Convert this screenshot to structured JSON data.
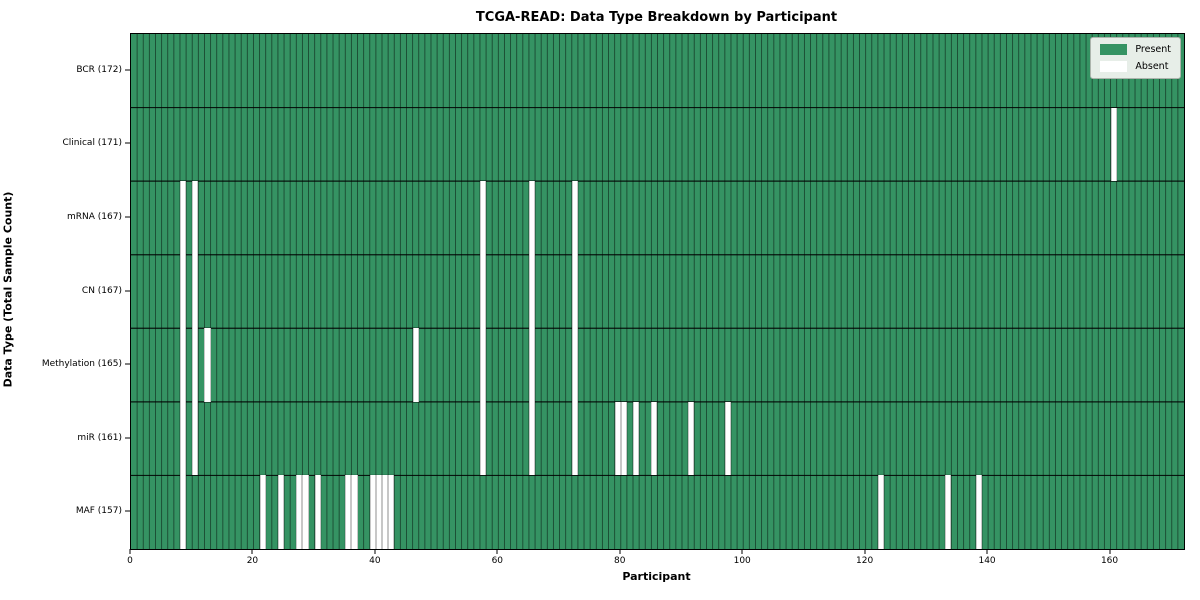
{
  "title": "TCGA-READ: Data Type Breakdown by Participant",
  "x_axis_label": "Participant",
  "y_axis_label": "Data Type (Total Sample Count)",
  "legend": {
    "present_label": "Present",
    "absent_label": "Absent"
  },
  "colors": {
    "present": "#359363",
    "absent": "#ffffff",
    "cell_edge": "rgba(0,0,0,0.5)",
    "row_divider": "rgba(0,0,0,0.85)"
  },
  "chart_data": {
    "type": "heatmap",
    "title": "TCGA-READ: Data Type Breakdown by Participant",
    "xlabel": "Participant",
    "ylabel": "Data Type (Total Sample Count)",
    "legend_entries": [
      "Present",
      "Absent"
    ],
    "legend_position": "upper right",
    "n_participants": 172,
    "xlim": [
      0,
      172
    ],
    "x_ticks": [
      0,
      20,
      40,
      60,
      80,
      100,
      120,
      140,
      160
    ],
    "rows": [
      {
        "label": "BCR (172)",
        "data_type": "BCR",
        "present_count": 172,
        "absent_participants": []
      },
      {
        "label": "Clinical (171)",
        "data_type": "Clinical",
        "present_count": 171,
        "absent_participants": [
          160
        ]
      },
      {
        "label": "mRNA (167)",
        "data_type": "mRNA",
        "present_count": 167,
        "absent_participants": [
          8,
          10,
          57,
          65,
          72
        ]
      },
      {
        "label": "CN (167)",
        "data_type": "CN",
        "present_count": 167,
        "absent_participants": [
          8,
          10,
          57,
          65,
          72
        ]
      },
      {
        "label": "Methylation (165)",
        "data_type": "Methylation",
        "present_count": 165,
        "absent_participants": [
          8,
          10,
          12,
          46,
          57,
          65,
          72
        ]
      },
      {
        "label": "miR (161)",
        "data_type": "miR",
        "present_count": 161,
        "absent_participants": [
          8,
          10,
          57,
          65,
          72,
          79,
          80,
          82,
          85,
          91,
          97
        ]
      },
      {
        "label": "MAF (157)",
        "data_type": "MAF",
        "present_count": 157,
        "absent_participants": [
          8,
          21,
          24,
          27,
          28,
          30,
          35,
          36,
          39,
          40,
          41,
          42,
          122,
          133,
          138
        ]
      }
    ]
  }
}
